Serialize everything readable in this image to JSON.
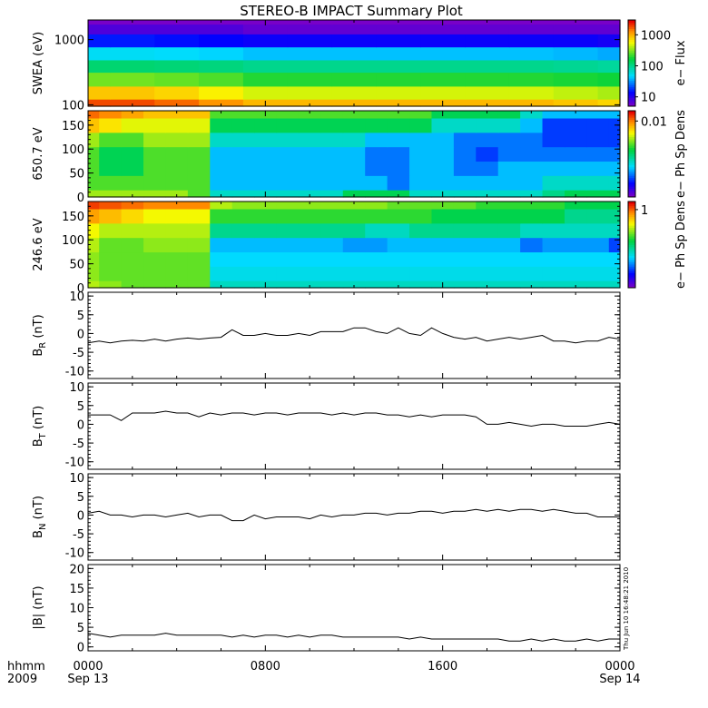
{
  "title": "STEREO-B IMPACT Summary Plot",
  "x_axis": {
    "row1_label": "hhmm",
    "row2_label": "2009",
    "ticks": [
      {
        "t": 0,
        "line1": "0000",
        "line2": "Sep 13"
      },
      {
        "t": 8,
        "line1": "0800",
        "line2": ""
      },
      {
        "t": 16,
        "line1": "1600",
        "line2": ""
      },
      {
        "t": 24,
        "line1": "0000",
        "line2": "Sep 14"
      }
    ]
  },
  "timestamp": "Thu Jun 10 16:48:21 2010",
  "chart_data": [
    {
      "type": "heatmap",
      "id": "swea",
      "ylabel": "SWEA (eV)",
      "yscale": "log",
      "ylim": [
        95,
        2000
      ],
      "yticks": [
        100,
        1000
      ],
      "colorbar": {
        "label": "e− Flux",
        "scale": "log",
        "range": [
          5,
          3000
        ],
        "ticks": [
          10,
          100,
          1000
        ]
      },
      "x_hours": [
        0,
        2,
        4,
        6,
        8,
        10,
        12,
        14,
        16,
        18,
        20,
        22,
        24
      ],
      "y_eV": [
        100,
        150,
        250,
        400,
        600,
        1000,
        1500,
        2000
      ],
      "z": [
        [
          2000,
          2000,
          1700,
          1300,
          1000,
          1000,
          1000,
          1000,
          1000,
          1000,
          1000,
          900,
          800
        ],
        [
          900,
          900,
          800,
          650,
          500,
          500,
          500,
          500,
          500,
          500,
          500,
          450,
          400
        ],
        [
          300,
          300,
          280,
          250,
          200,
          200,
          200,
          200,
          200,
          200,
          200,
          190,
          180
        ],
        [
          120,
          120,
          115,
          110,
          100,
          100,
          100,
          100,
          100,
          100,
          100,
          95,
          90
        ],
        [
          50,
          50,
          48,
          45,
          40,
          40,
          40,
          40,
          40,
          40,
          40,
          38,
          35
        ],
        [
          15,
          15,
          14,
          13,
          12,
          12,
          12,
          12,
          12,
          12,
          12,
          12,
          11
        ],
        [
          7,
          7,
          7,
          7,
          6,
          6,
          6,
          6,
          6,
          6,
          6,
          6,
          6
        ],
        [
          5,
          5,
          5,
          5,
          5,
          5,
          5,
          5,
          5,
          5,
          5,
          5,
          5
        ]
      ]
    },
    {
      "type": "heatmap",
      "id": "pad650",
      "ylabel": "650.7 eV",
      "ylim": [
        0,
        180
      ],
      "yticks": [
        0,
        50,
        100,
        150
      ],
      "colorbar": {
        "label": "e− Ph Sp Dens",
        "scale": "log",
        "range": [
          0.0005,
          0.015
        ],
        "ticks": [
          0.01
        ]
      },
      "x_hours": [
        0,
        1,
        2,
        3,
        4,
        5,
        6,
        7,
        8,
        9,
        10,
        11,
        12,
        13,
        14,
        15,
        16,
        17,
        18,
        19,
        20,
        21,
        22,
        23,
        24
      ],
      "y_deg": [
        0,
        30,
        60,
        90,
        120,
        150,
        180
      ],
      "z": [
        [
          0.005,
          0.005,
          0.005,
          0.005,
          0.005,
          0.004,
          0.002,
          0.002,
          0.002,
          0.002,
          0.002,
          0.002,
          0.003,
          0.003,
          0.003,
          0.002,
          0.002,
          0.002,
          0.002,
          0.002,
          0.002,
          0.0025,
          0.003,
          0.003,
          0.003
        ],
        [
          0.004,
          0.004,
          0.004,
          0.004,
          0.004,
          0.004,
          0.0015,
          0.0015,
          0.0015,
          0.0015,
          0.0015,
          0.0015,
          0.0015,
          0.0015,
          0.0012,
          0.0015,
          0.0015,
          0.0015,
          0.0015,
          0.0015,
          0.0015,
          0.002,
          0.002,
          0.002,
          0.002
        ],
        [
          0.004,
          0.003,
          0.003,
          0.004,
          0.004,
          0.004,
          0.0015,
          0.0015,
          0.0015,
          0.0015,
          0.0015,
          0.0015,
          0.0015,
          0.0012,
          0.0012,
          0.0015,
          0.0015,
          0.0012,
          0.0012,
          0.0015,
          0.0015,
          0.0015,
          0.0015,
          0.0015,
          0.0015
        ],
        [
          0.004,
          0.003,
          0.003,
          0.004,
          0.004,
          0.004,
          0.0015,
          0.0015,
          0.0015,
          0.0015,
          0.0015,
          0.0015,
          0.0015,
          0.0012,
          0.0012,
          0.0015,
          0.0015,
          0.0012,
          0.001,
          0.0012,
          0.0012,
          0.0012,
          0.0012,
          0.0012,
          0.0012
        ],
        [
          0.005,
          0.004,
          0.004,
          0.005,
          0.005,
          0.005,
          0.002,
          0.002,
          0.002,
          0.002,
          0.002,
          0.002,
          0.002,
          0.0015,
          0.0015,
          0.0015,
          0.0015,
          0.0012,
          0.0012,
          0.0012,
          0.0012,
          0.001,
          0.001,
          0.001,
          0.001
        ],
        [
          0.008,
          0.007,
          0.006,
          0.006,
          0.006,
          0.006,
          0.003,
          0.003,
          0.003,
          0.003,
          0.003,
          0.003,
          0.003,
          0.003,
          0.003,
          0.003,
          0.002,
          0.002,
          0.002,
          0.002,
          0.0015,
          0.001,
          0.001,
          0.001,
          0.001
        ],
        [
          0.011,
          0.01,
          0.009,
          0.008,
          0.008,
          0.008,
          0.004,
          0.004,
          0.004,
          0.004,
          0.004,
          0.004,
          0.004,
          0.004,
          0.004,
          0.004,
          0.003,
          0.003,
          0.003,
          0.003,
          0.002,
          0.0015,
          0.0015,
          0.0015,
          0.0015
        ]
      ]
    },
    {
      "type": "heatmap",
      "id": "pad246",
      "ylabel": "246.6 eV",
      "ylim": [
        0,
        180
      ],
      "yticks": [
        0,
        50,
        100,
        150
      ],
      "colorbar": {
        "label": "e− Ph Sp Dens",
        "scale": "log",
        "range": [
          0.02,
          1.5
        ],
        "ticks": [
          1
        ]
      },
      "x_hours": [
        0,
        1,
        2,
        3,
        4,
        5,
        6,
        7,
        8,
        9,
        10,
        11,
        12,
        13,
        14,
        15,
        16,
        17,
        18,
        19,
        20,
        21,
        22,
        23,
        24
      ],
      "y_deg": [
        0,
        30,
        60,
        90,
        120,
        150,
        180
      ],
      "z": [
        [
          0.4,
          0.35,
          0.3,
          0.3,
          0.3,
          0.3,
          0.12,
          0.12,
          0.12,
          0.12,
          0.12,
          0.12,
          0.12,
          0.12,
          0.12,
          0.12,
          0.12,
          0.12,
          0.12,
          0.12,
          0.12,
          0.12,
          0.12,
          0.12,
          0.12
        ],
        [
          0.35,
          0.3,
          0.3,
          0.3,
          0.3,
          0.3,
          0.1,
          0.1,
          0.1,
          0.1,
          0.1,
          0.1,
          0.1,
          0.1,
          0.1,
          0.1,
          0.1,
          0.1,
          0.1,
          0.1,
          0.1,
          0.1,
          0.1,
          0.1,
          0.1
        ],
        [
          0.35,
          0.3,
          0.3,
          0.3,
          0.3,
          0.3,
          0.09,
          0.09,
          0.09,
          0.09,
          0.09,
          0.09,
          0.09,
          0.09,
          0.09,
          0.09,
          0.09,
          0.09,
          0.09,
          0.09,
          0.09,
          0.09,
          0.09,
          0.09,
          0.09
        ],
        [
          0.4,
          0.3,
          0.3,
          0.35,
          0.35,
          0.35,
          0.08,
          0.08,
          0.08,
          0.08,
          0.08,
          0.08,
          0.07,
          0.07,
          0.08,
          0.08,
          0.08,
          0.08,
          0.08,
          0.08,
          0.06,
          0.07,
          0.07,
          0.07,
          0.05
        ],
        [
          0.5,
          0.4,
          0.4,
          0.4,
          0.4,
          0.4,
          0.15,
          0.15,
          0.15,
          0.15,
          0.15,
          0.15,
          0.15,
          0.12,
          0.12,
          0.15,
          0.15,
          0.15,
          0.15,
          0.15,
          0.12,
          0.12,
          0.12,
          0.12,
          0.12
        ],
        [
          0.8,
          0.7,
          0.6,
          0.5,
          0.5,
          0.5,
          0.25,
          0.25,
          0.25,
          0.25,
          0.25,
          0.25,
          0.25,
          0.25,
          0.25,
          0.25,
          0.2,
          0.2,
          0.2,
          0.2,
          0.2,
          0.2,
          0.15,
          0.15,
          0.15
        ],
        [
          1.2,
          1.1,
          1.0,
          0.9,
          0.9,
          0.9,
          0.4,
          0.35,
          0.35,
          0.35,
          0.35,
          0.35,
          0.35,
          0.35,
          0.3,
          0.3,
          0.3,
          0.3,
          0.25,
          0.25,
          0.25,
          0.25,
          0.2,
          0.2,
          0.2
        ]
      ]
    },
    {
      "type": "line",
      "id": "br",
      "ylabel": "B",
      "ylabel_sub": "R",
      "ylabel_unit": " (nT)",
      "ylim": [
        -12,
        11
      ],
      "yticks": [
        -10,
        -5,
        0,
        5,
        10
      ],
      "x": [
        0,
        0.5,
        1,
        1.5,
        2,
        2.5,
        3,
        3.5,
        4,
        4.5,
        5,
        5.5,
        6,
        6.5,
        7,
        7.5,
        8,
        8.5,
        9,
        9.5,
        10,
        10.5,
        11,
        11.5,
        12,
        12.5,
        13,
        13.5,
        14,
        14.5,
        15,
        15.5,
        16,
        16.5,
        17,
        17.5,
        18,
        18.5,
        19,
        19.5,
        20,
        20.5,
        21,
        21.5,
        22,
        22.5,
        23,
        23.5,
        24
      ],
      "y": [
        -2.5,
        -2,
        -2.5,
        -2,
        -1.8,
        -2,
        -1.5,
        -2,
        -1.5,
        -1.2,
        -1.5,
        -1.2,
        -1,
        1,
        -0.5,
        -0.5,
        0,
        -0.5,
        -0.5,
        0,
        -0.5,
        0.5,
        0.5,
        0.5,
        1.5,
        1.5,
        0.5,
        0,
        1.5,
        0,
        -0.5,
        1.5,
        0,
        -1,
        -1.5,
        -1,
        -2,
        -1.5,
        -1,
        -1.5,
        -1,
        -0.5,
        -2,
        -2,
        -2.5,
        -2,
        -2,
        -1,
        -1.5
      ]
    },
    {
      "type": "line",
      "id": "bt",
      "ylabel": "B",
      "ylabel_sub": "T",
      "ylabel_unit": " (nT)",
      "ylim": [
        -12,
        11
      ],
      "yticks": [
        -10,
        -5,
        0,
        5,
        10
      ],
      "x": [
        0,
        0.5,
        1,
        1.5,
        2,
        2.5,
        3,
        3.5,
        4,
        4.5,
        5,
        5.5,
        6,
        6.5,
        7,
        7.5,
        8,
        8.5,
        9,
        9.5,
        10,
        10.5,
        11,
        11.5,
        12,
        12.5,
        13,
        13.5,
        14,
        14.5,
        15,
        15.5,
        16,
        16.5,
        17,
        17.5,
        18,
        18.5,
        19,
        19.5,
        20,
        20.5,
        21,
        21.5,
        22,
        22.5,
        23,
        23.5,
        24
      ],
      "y": [
        2.5,
        2.5,
        2.5,
        1,
        3,
        3,
        3,
        3.5,
        3,
        3,
        2,
        3,
        2.5,
        3,
        3,
        2.5,
        3,
        3,
        2.5,
        3,
        3,
        3,
        2.5,
        3,
        2.5,
        3,
        3,
        2.5,
        2.5,
        2,
        2.5,
        2,
        2.5,
        2.5,
        2.5,
        2,
        0,
        0,
        0.5,
        0,
        -0.5,
        0,
        0,
        -0.5,
        -0.5,
        -0.5,
        0,
        0.5,
        0
      ]
    },
    {
      "type": "line",
      "id": "bn",
      "ylabel": "B",
      "ylabel_sub": "N",
      "ylabel_unit": " (nT)",
      "ylim": [
        -12,
        11
      ],
      "yticks": [
        -10,
        -5,
        0,
        5,
        10
      ],
      "x": [
        0,
        0.5,
        1,
        1.5,
        2,
        2.5,
        3,
        3.5,
        4,
        4.5,
        5,
        5.5,
        6,
        6.5,
        7,
        7.5,
        8,
        8.5,
        9,
        9.5,
        10,
        10.5,
        11,
        11.5,
        12,
        12.5,
        13,
        13.5,
        14,
        14.5,
        15,
        15.5,
        16,
        16.5,
        17,
        17.5,
        18,
        18.5,
        19,
        19.5,
        20,
        20.5,
        21,
        21.5,
        22,
        22.5,
        23,
        23.5,
        24
      ],
      "y": [
        0.5,
        1,
        0,
        0,
        -0.5,
        0,
        0,
        -0.5,
        0,
        0.5,
        -0.5,
        0,
        0,
        -1.5,
        -1.5,
        0,
        -1,
        -0.5,
        -0.5,
        -0.5,
        -1,
        0,
        -0.5,
        0,
        0,
        0.5,
        0.5,
        0,
        0.5,
        0.5,
        1,
        1,
        0.5,
        1,
        1,
        1.5,
        1,
        1.5,
        1,
        1.5,
        1.5,
        1,
        1.5,
        1,
        0.5,
        0.5,
        -0.5,
        -0.5,
        -0.5
      ]
    },
    {
      "type": "line",
      "id": "bmag",
      "ylabel": "|B| (nT)",
      "ylim": [
        -1,
        21
      ],
      "yticks": [
        0,
        5,
        10,
        15,
        20
      ],
      "x": [
        0,
        0.5,
        1,
        1.5,
        2,
        2.5,
        3,
        3.5,
        4,
        4.5,
        5,
        5.5,
        6,
        6.5,
        7,
        7.5,
        8,
        8.5,
        9,
        9.5,
        10,
        10.5,
        11,
        11.5,
        12,
        12.5,
        13,
        13.5,
        14,
        14.5,
        15,
        15.5,
        16,
        16.5,
        17,
        17.5,
        18,
        18.5,
        19,
        19.5,
        20,
        20.5,
        21,
        21.5,
        22,
        22.5,
        23,
        23.5,
        24
      ],
      "y": [
        3.5,
        3,
        2.5,
        3,
        3,
        3,
        3,
        3.5,
        3,
        3,
        3,
        3,
        3,
        2.5,
        3,
        2.5,
        3,
        3,
        2.5,
        3,
        2.5,
        3,
        3,
        2.5,
        2.5,
        2.5,
        2.5,
        2.5,
        2.5,
        2,
        2.5,
        2,
        2,
        2,
        2,
        2,
        2,
        2,
        1.5,
        1.5,
        2,
        1.5,
        2,
        1.5,
        1.5,
        2,
        1.5,
        2,
        2
      ]
    }
  ]
}
